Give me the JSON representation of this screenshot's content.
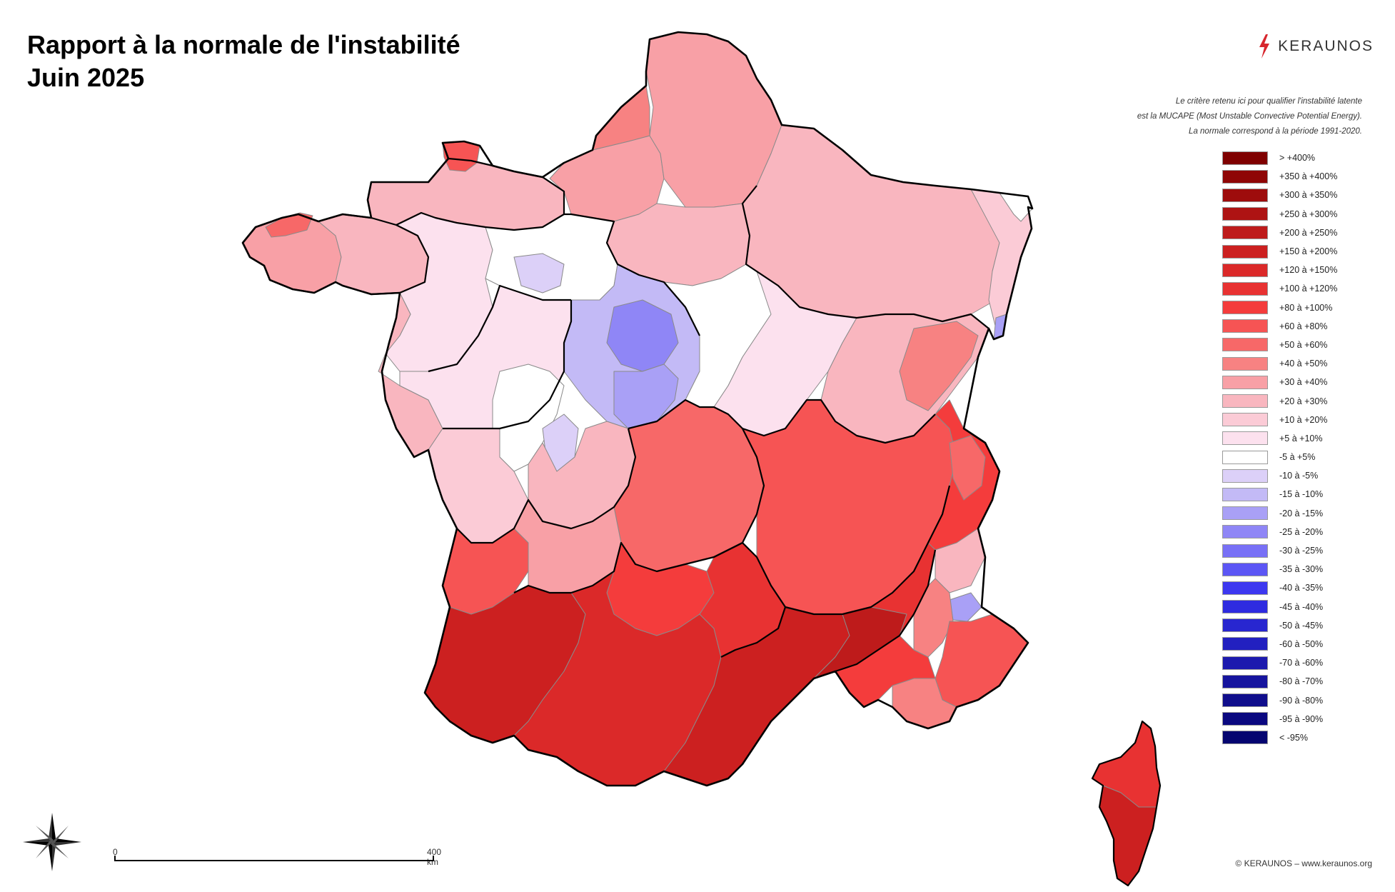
{
  "title": {
    "line1": "Rapport à la normale de l'instabilité",
    "line2": "Juin 2025"
  },
  "brand": {
    "name": "KERAUNOS",
    "icon": "lightning-bolt-icon",
    "color": "#d7262d"
  },
  "note": {
    "line1": "Le critère retenu ici pour qualifier l'instabilité latente",
    "line2": "est la MUCAPE (Most Unstable Convective Potential Energy).",
    "line3": "La normale correspond à la période 1991-2020."
  },
  "legend": [
    {
      "label": "> +400%",
      "color": "#7f0000"
    },
    {
      "label": "+350 à +400%",
      "color": "#8f0606"
    },
    {
      "label": "+300 à +350%",
      "color": "#9e0c0c"
    },
    {
      "label": "+250 à +300%",
      "color": "#ae1313"
    },
    {
      "label": "+200 à +250%",
      "color": "#be1b1b"
    },
    {
      "label": "+150 à +200%",
      "color": "#cc2020"
    },
    {
      "label": "+120 à +150%",
      "color": "#db2929"
    },
    {
      "label": "+100 à +120%",
      "color": "#e83232"
    },
    {
      "label": "+80 à +100%",
      "color": "#f43c3c"
    },
    {
      "label": "+60 à +80%",
      "color": "#f65454"
    },
    {
      "label": "+50 à +60%",
      "color": "#f76868"
    },
    {
      "label": "+40 à +50%",
      "color": "#f78282"
    },
    {
      "label": "+30 à +40%",
      "color": "#f8a0a6"
    },
    {
      "label": "+20 à +30%",
      "color": "#f9b6bf"
    },
    {
      "label": "+10 à +20%",
      "color": "#fbcbd6"
    },
    {
      "label": "+5 à +10%",
      "color": "#fce1ee"
    },
    {
      "label": "-5 à +5%",
      "color": "#ffffff"
    },
    {
      "label": "-10 à -5%",
      "color": "#dcd0f8"
    },
    {
      "label": "-15 à -10%",
      "color": "#c3baf6"
    },
    {
      "label": "-20 à -15%",
      "color": "#a9a0f6"
    },
    {
      "label": "-25 à -20%",
      "color": "#8f86f6"
    },
    {
      "label": "-30 à -25%",
      "color": "#7870f6"
    },
    {
      "label": "-35 à -30%",
      "color": "#5c56f5"
    },
    {
      "label": "-40 à -35%",
      "color": "#3d38f0"
    },
    {
      "label": "-45 à -40%",
      "color": "#2e2be0"
    },
    {
      "label": "-50 à -45%",
      "color": "#2826d0"
    },
    {
      "label": "-60 à -50%",
      "color": "#2220c0"
    },
    {
      "label": "-70 à -60%",
      "color": "#1c1aae"
    },
    {
      "label": "-80 à -70%",
      "color": "#16149e"
    },
    {
      "label": "-90 à -80%",
      "color": "#100e8c"
    },
    {
      "label": "-95 à -90%",
      "color": "#0a0880"
    },
    {
      "label": "< -95%",
      "color": "#050570"
    }
  ],
  "scale_bar": {
    "start": "0",
    "end": "400 km"
  },
  "copyright": "© KERAUNOS – www.keraunos.org",
  "map": {
    "regions": [
      {
        "name": "bretagne-ouest",
        "color": "#f8a0a6"
      },
      {
        "name": "finistere-nord",
        "color": "#f76868"
      },
      {
        "name": "bretagne-est",
        "color": "#f9b6bf"
      },
      {
        "name": "normandie-ouest",
        "color": "#f9b6bf"
      },
      {
        "name": "manche-nord",
        "color": "#f65454"
      },
      {
        "name": "normandie-est",
        "color": "#f8a0a6"
      },
      {
        "name": "hauts-de-france",
        "color": "#f8a0a6"
      },
      {
        "name": "somme-coast",
        "color": "#f78282"
      },
      {
        "name": "ile-de-france",
        "color": "#f9b6bf"
      },
      {
        "name": "grand-est",
        "color": "#f9b6bf"
      },
      {
        "name": "alsace",
        "color": "#fbcbd6"
      },
      {
        "name": "bas-rhin-north",
        "color": "#ffffff"
      },
      {
        "name": "pays-de-la-loire",
        "color": "#fce1ee"
      },
      {
        "name": "centre-west",
        "color": "#ffffff"
      },
      {
        "name": "sarthe-lowneg",
        "color": "#dcd0f8"
      },
      {
        "name": "centre-cher",
        "color": "#c3baf6"
      },
      {
        "name": "centre-core",
        "color": "#8f86f6"
      },
      {
        "name": "indre-south",
        "color": "#a9a0f6"
      },
      {
        "name": "centre-east",
        "color": "#ffffff"
      },
      {
        "name": "bourgogne",
        "color": "#fce1ee"
      },
      {
        "name": "franche-comte",
        "color": "#f9b6bf"
      },
      {
        "name": "doubs",
        "color": "#f78282"
      },
      {
        "name": "poitou",
        "color": "#fce1ee"
      },
      {
        "name": "vendee-coast",
        "color": "#f9b6bf"
      },
      {
        "name": "limousin-west",
        "color": "#ffffff"
      },
      {
        "name": "haute-vienne-neg",
        "color": "#dcd0f8"
      },
      {
        "name": "charente",
        "color": "#fbcbd6"
      },
      {
        "name": "correze",
        "color": "#f9b6bf"
      },
      {
        "name": "auvergne",
        "color": "#f76868"
      },
      {
        "name": "rhone-alpes",
        "color": "#f65454"
      },
      {
        "name": "savoie",
        "color": "#f43c3c"
      },
      {
        "name": "haute-savoie-east",
        "color": "#f76868"
      },
      {
        "name": "gironde-coast",
        "color": "#f65454"
      },
      {
        "name": "dordogne",
        "color": "#f8a0a6"
      },
      {
        "name": "lot",
        "color": "#f43c3c"
      },
      {
        "name": "aquitaine-south",
        "color": "#cc2020"
      },
      {
        "name": "midi-pyrenees",
        "color": "#db2929"
      },
      {
        "name": "aveyron",
        "color": "#e83232"
      },
      {
        "name": "languedoc",
        "color": "#cc2020"
      },
      {
        "name": "gard-herault",
        "color": "#be1b1b"
      },
      {
        "name": "provence-west",
        "color": "#f43c3c"
      },
      {
        "name": "vaucluse-drome",
        "color": "#e83232"
      },
      {
        "name": "hautes-alpes-pink",
        "color": "#f9b6bf"
      },
      {
        "name": "alpes-blue",
        "color": "#a9a0f6"
      },
      {
        "name": "alpes-de-haute-provence",
        "color": "#f78282"
      },
      {
        "name": "var-alpes-maritimes",
        "color": "#f65454"
      },
      {
        "name": "var-coast",
        "color": "#f78282"
      },
      {
        "name": "bouches-du-rhone",
        "color": "#f43c3c"
      },
      {
        "name": "corse-north",
        "color": "#e83232"
      },
      {
        "name": "corse-south",
        "color": "#cc2020"
      },
      {
        "name": "haut-rhin-blue",
        "color": "#a9a0f6"
      }
    ]
  }
}
